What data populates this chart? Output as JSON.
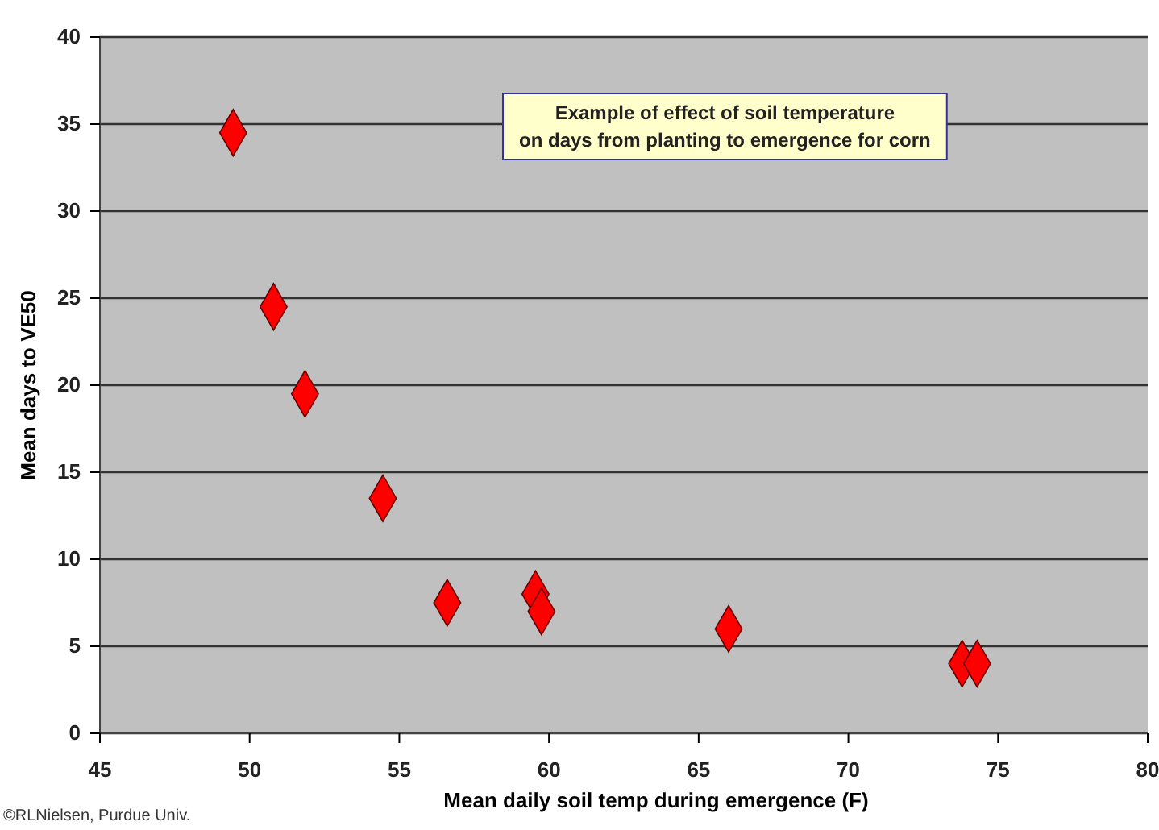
{
  "chart_data": {
    "type": "scatter",
    "xlabel": "Mean daily soil temp during emergence (F)",
    "ylabel": "Mean days to VE50",
    "x": [
      49.45,
      50.8,
      51.85,
      54.45,
      56.6,
      59.55,
      59.75,
      66.0,
      73.8,
      74.3
    ],
    "series": [
      {
        "color": "#ff0000",
        "values": [
          34.5,
          24.5,
          19.5,
          13.5,
          7.5,
          8,
          7,
          6,
          4,
          4
        ]
      }
    ],
    "xlim": [
      45,
      80
    ],
    "xticks": [
      45,
      50,
      55,
      60,
      65,
      70,
      75,
      80
    ],
    "ylim": [
      0,
      40
    ],
    "yticks": [
      0,
      5,
      10,
      15,
      20,
      25,
      30,
      35,
      40
    ],
    "grid": "y",
    "marker": "diamond",
    "annotations": [
      "Example of effect of soil temperature\non days from planting to emergence for corn",
      "©RLNielsen, Purdue Univ."
    ]
  }
}
